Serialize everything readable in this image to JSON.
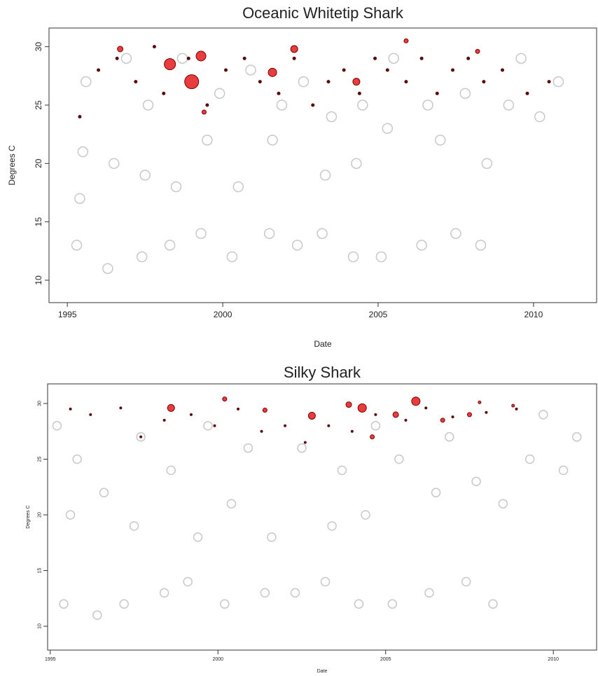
{
  "chart_data": [
    {
      "type": "scatter",
      "title": "Oceanic Whitetip Shark",
      "x_label": "Date",
      "y_label": "Degrees C",
      "xlim": [
        1994.41,
        2012.03
      ],
      "ylim": [
        8.08,
        31.6
      ],
      "xticks": [
        1995,
        2000,
        2005,
        2010
      ],
      "yticks": [
        10,
        15,
        20,
        25,
        30
      ],
      "series": [
        {
          "color": "#c8c8c8",
          "hollow": true,
          "size": 7,
          "x": [
            1995.3,
            1995.4,
            1995.5,
            1995.6,
            1996.3,
            1996.5,
            1996.9,
            1997.4,
            1997.5,
            1997.6,
            1998.3,
            1998.5,
            1998.7,
            1999.3,
            1999.5,
            1999.9,
            2000.3,
            2000.5,
            2000.9,
            2001.5,
            2001.6,
            2001.9,
            2002.4,
            2002.6,
            2003.2,
            2003.3,
            2003.5,
            2004.2,
            2004.3,
            2004.5,
            2005.1,
            2005.3,
            2005.5,
            2006.4,
            2006.6,
            2007.0,
            2007.5,
            2007.8,
            2008.3,
            2008.5,
            2009.2,
            2009.6,
            2010.2,
            2010.8
          ],
          "values": [
            13,
            17,
            21,
            27,
            11,
            20,
            29,
            12,
            19,
            25,
            13,
            18,
            29,
            14,
            22,
            26,
            12,
            18,
            28,
            14,
            22,
            25,
            13,
            27,
            14,
            19,
            24,
            12,
            20,
            25,
            12,
            23,
            29,
            13,
            25,
            22,
            14,
            26,
            13,
            20,
            25,
            29,
            24,
            27
          ]
        },
        {
          "color": "#5a0a0a",
          "hollow": false,
          "size": 2.5,
          "x": [
            1995.4,
            1996.0,
            1996.6,
            1997.2,
            1997.8,
            1998.1,
            1998.9,
            1999.5,
            2000.1,
            2000.7,
            2001.2,
            2001.8,
            2002.3,
            2002.9,
            2003.4,
            2003.9,
            2004.4,
            2004.9,
            2005.3,
            2005.9,
            2006.4,
            2006.9,
            2007.4,
            2007.9,
            2008.4,
            2009.0,
            2009.8,
            2010.5
          ],
          "values": [
            24,
            28,
            29,
            27,
            30,
            26,
            29,
            25,
            28,
            29,
            27,
            26,
            29,
            25,
            27,
            28,
            26,
            29,
            28,
            27,
            29,
            26,
            28,
            29,
            27,
            28,
            26,
            27
          ]
        },
        {
          "color": "#e41a1c",
          "hollow": false,
          "x": [
            1996.7,
            1998.3,
            1999.0,
            1999.3,
            1999.4,
            2001.6,
            2002.3,
            2004.3,
            2005.9,
            2008.2
          ],
          "values": [
            29.8,
            28.5,
            27,
            29.2,
            24.4,
            27.8,
            29.8,
            27,
            30.5,
            29.6
          ],
          "sizes": [
            4,
            8,
            10,
            7,
            3,
            6,
            5,
            5,
            3,
            3
          ]
        }
      ]
    },
    {
      "type": "scatter",
      "title": "Silky Shark",
      "x_label": "Date",
      "y_label": "Degrees C",
      "xlim": [
        1994.92,
        2011.29
      ],
      "ylim": [
        7.86,
        31.76
      ],
      "xticks": [
        1995,
        2000,
        2005,
        2010
      ],
      "yticks": [
        10,
        15,
        20,
        25,
        30
      ],
      "series": [
        {
          "color": "#c8c8c8",
          "hollow": true,
          "size": 6,
          "x": [
            1995.2,
            1995.4,
            1995.6,
            1995.8,
            1996.4,
            1996.6,
            1997.2,
            1997.5,
            1997.7,
            1998.4,
            1998.6,
            1999.1,
            1999.4,
            1999.7,
            2000.2,
            2000.4,
            2000.9,
            2001.4,
            2001.6,
            2002.3,
            2002.5,
            2003.2,
            2003.4,
            2003.7,
            2004.2,
            2004.4,
            2004.7,
            2005.2,
            2005.4,
            2006.3,
            2006.5,
            2006.9,
            2007.4,
            2007.7,
            2008.2,
            2008.5,
            2009.3,
            2009.7,
            2010.3,
            2010.7
          ],
          "values": [
            28,
            12,
            20,
            25,
            11,
            22,
            12,
            19,
            27,
            13,
            24,
            14,
            18,
            28,
            12,
            21,
            26,
            13,
            18,
            13,
            26,
            14,
            19,
            24,
            12,
            20,
            28,
            12,
            25,
            13,
            22,
            27,
            14,
            23,
            12,
            21,
            25,
            29,
            24,
            27
          ]
        },
        {
          "color": "#5a0a0a",
          "hollow": false,
          "size": 2,
          "x": [
            1995.6,
            1996.2,
            1997.1,
            1997.7,
            1998.4,
            1999.2,
            1999.9,
            2000.6,
            2001.3,
            2002.0,
            2002.6,
            2003.3,
            2004.0,
            2004.7,
            2005.6,
            2006.2,
            2007.0,
            2008.0,
            2008.9
          ],
          "values": [
            29.5,
            29,
            29.6,
            27,
            28.5,
            29,
            28,
            29.5,
            27.5,
            28,
            26.5,
            28,
            27.5,
            29,
            28.5,
            29.6,
            28.8,
            29.2,
            29.5
          ]
        },
        {
          "color": "#e41a1c",
          "hollow": false,
          "x": [
            1998.6,
            2000.2,
            2001.4,
            2002.8,
            2003.9,
            2004.3,
            2004.6,
            2005.3,
            2005.9,
            2006.7,
            2007.5,
            2007.8,
            2008.8
          ],
          "values": [
            29.6,
            30.4,
            29.4,
            28.9,
            29.9,
            29.6,
            27,
            29,
            30.2,
            28.5,
            29,
            30.1,
            29.8
          ],
          "sizes": [
            5,
            3,
            3,
            5,
            4,
            6,
            3,
            4,
            6,
            3,
            3,
            2,
            2
          ]
        }
      ]
    }
  ]
}
